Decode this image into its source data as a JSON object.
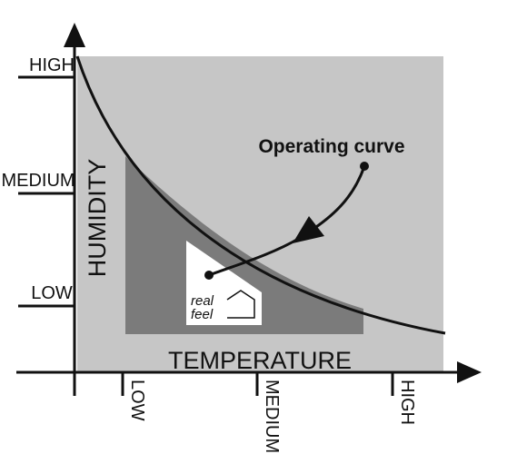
{
  "y_axis": {
    "title": "HUMIDITY",
    "labels": [
      "HIGH",
      "MEDIUM",
      "LOW"
    ]
  },
  "x_axis": {
    "title": "TEMPERATURE",
    "labels": [
      "LOW",
      "MEDIUM",
      "HIGH"
    ]
  },
  "annotation": "Operating curve",
  "logo": {
    "lines": [
      "real",
      "feel"
    ]
  }
}
